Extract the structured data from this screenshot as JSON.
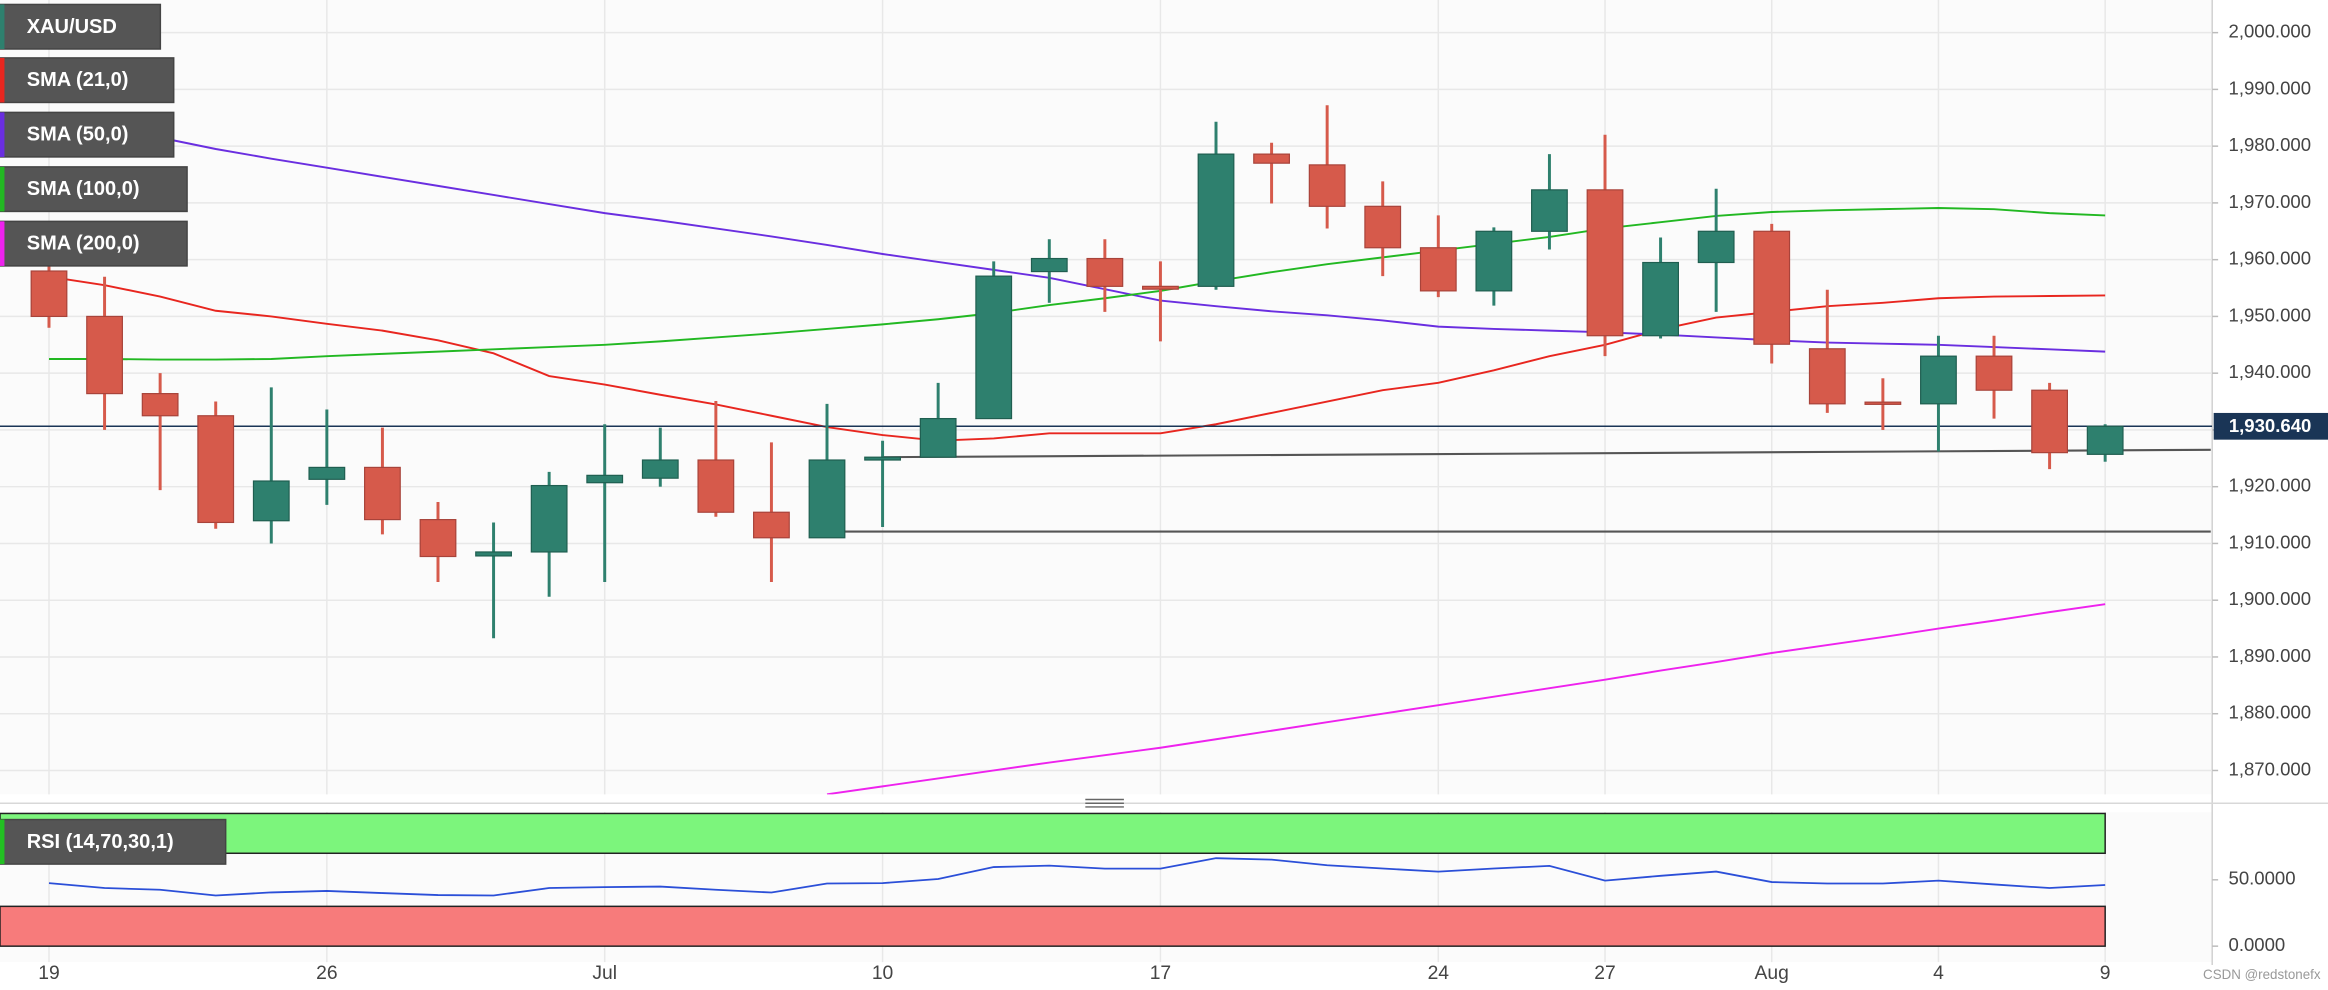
{
  "chart_data": {
    "type": "candlestick",
    "categories": [
      "19",
      null,
      null,
      null,
      null,
      "26",
      null,
      null,
      null,
      null,
      "Jul",
      null,
      null,
      null,
      null,
      "10",
      null,
      null,
      null,
      null,
      "17",
      null,
      null,
      null,
      null,
      "24",
      null,
      null,
      "27",
      null,
      null,
      "Aug",
      null,
      null,
      "4",
      null,
      null,
      "9"
    ],
    "ohlc": {
      "name": "XAU/USD",
      "up_color": "#2e806e",
      "down_color": "#d65a4b",
      "open": [
        1958,
        1950,
        1936.4,
        1932.5,
        1914,
        1921.3,
        1923.4,
        1914.2,
        1907.8,
        1908.5,
        1920.7,
        1921.5,
        1924.7,
        1915.5,
        1911,
        1924.7,
        1925.2,
        1932,
        1957.9,
        1960.2,
        1955.3,
        1955.3,
        1978.6,
        1976.7,
        1969.4,
        1962.1,
        1954.5,
        1965,
        1972.3,
        1946.6,
        1959.5,
        1965,
        1944.3,
        1934.9,
        1934.6,
        1943,
        1937,
        1925.7
      ],
      "high": [
        1959,
        1957,
        1940,
        1935,
        1937.5,
        1933.6,
        1930.4,
        1917.3,
        1913.7,
        1922.6,
        1931,
        1930.4,
        1935.1,
        1927.8,
        1934.6,
        1928.1,
        1938.3,
        1959.7,
        1963.6,
        1963.6,
        1959.7,
        1984.3,
        1980.6,
        1987.2,
        1973.8,
        1967.8,
        1965.7,
        1978.6,
        1982,
        1963.9,
        1972.5,
        1966.3,
        1954.7,
        1939.1,
        1946.6,
        1946.6,
        1938.3,
        1931
      ],
      "low": [
        1948,
        1930,
        1919.4,
        1912.6,
        1910,
        1916.8,
        1911.6,
        1903.2,
        1893.3,
        1900.6,
        1903.2,
        1920,
        1914.7,
        1903.2,
        1911,
        1912.9,
        1925.2,
        1932,
        1952.4,
        1950.8,
        1945.6,
        1954.7,
        1969.9,
        1965.5,
        1957.1,
        1953.4,
        1951.9,
        1961.8,
        1943,
        1946.1,
        1950.8,
        1941.7,
        1933,
        1930,
        1926.2,
        1932,
        1923.1,
        1924.4
      ],
      "close": [
        1950,
        1936.4,
        1932.5,
        1913.7,
        1921,
        1923.4,
        1914.2,
        1907.7,
        1908.5,
        1920.2,
        1922,
        1924.7,
        1915.5,
        1911,
        1924.7,
        1925.2,
        1932,
        1957.1,
        1960.2,
        1955.3,
        1954.8,
        1978.6,
        1977,
        1969.4,
        1962.1,
        1954.5,
        1965,
        1972.3,
        1946.6,
        1959.5,
        1965,
        1945.1,
        1934.6,
        1934.6,
        1943,
        1937,
        1926,
        1930.64
      ]
    },
    "series": [
      {
        "name": "SMA (21,0)",
        "color": "#e8261f",
        "values": [
          1957,
          1955.5,
          1953.5,
          1951,
          1950,
          1948.7,
          1947.5,
          1945.8,
          1943.5,
          1939.5,
          1938,
          1936.2,
          1934.5,
          1932.5,
          1930.5,
          1929.1,
          1928.1,
          1928.5,
          1929.4,
          1929.4,
          1929.4,
          1931,
          1933,
          1935,
          1937,
          1938.3,
          1940.5,
          1943,
          1945,
          1947.7,
          1949.8,
          1950.8,
          1951.8,
          1952.4,
          1953.2,
          1953.5,
          1953.6,
          1953.7
        ]
      },
      {
        "name": "SMA (50,0)",
        "color": "#6a2ee0",
        "values": [
          1984.5,
          1983,
          1981.5,
          1979.5,
          1977.8,
          1976.2,
          1974.6,
          1973,
          1971.4,
          1969.8,
          1968.2,
          1966.9,
          1965.5,
          1964.1,
          1962.6,
          1961,
          1959.6,
          1958.2,
          1956.8,
          1954.8,
          1952.8,
          1951.8,
          1950.9,
          1950.2,
          1949.3,
          1948.2,
          1947.8,
          1947.5,
          1947.2,
          1946.8,
          1946.3,
          1945.8,
          1945.4,
          1945.2,
          1945,
          1944.6,
          1944.2,
          1943.8
        ]
      },
      {
        "name": "SMA (100,0)",
        "color": "#22b822",
        "values": [
          1942.5,
          1942.5,
          1942.4,
          1942.4,
          1942.5,
          1943,
          1943.4,
          1943.8,
          1944.2,
          1944.6,
          1945,
          1945.6,
          1946.3,
          1947,
          1947.8,
          1948.6,
          1949.5,
          1950.6,
          1952,
          1953.2,
          1954.5,
          1956.2,
          1957.8,
          1959.2,
          1960.4,
          1961.6,
          1962.8,
          1964,
          1965.5,
          1966.6,
          1967.7,
          1968.4,
          1968.7,
          1968.9,
          1969.1,
          1968.9,
          1968.2,
          1967.8
        ]
      },
      {
        "name": "SMA (200,0)",
        "color": "#ee22ee",
        "values": [
          null,
          null,
          null,
          null,
          null,
          null,
          null,
          null,
          null,
          null,
          null,
          null,
          null,
          null,
          1865.8,
          1867.2,
          1868.6,
          1870,
          1871.4,
          1872.7,
          1874,
          1875.5,
          1877,
          1878.5,
          1880,
          1881.5,
          1883,
          1884.5,
          1886,
          1887.6,
          1889.1,
          1890.7,
          1892.1,
          1893.5,
          1895,
          1896.4,
          1897.9,
          1899.3
        ]
      }
    ],
    "ylim": [
      1865.8,
      2005.75
    ],
    "yticks": [
      {
        "value": 2000,
        "label": "2,000.000"
      },
      {
        "value": 1990,
        "label": "1,990.000"
      },
      {
        "value": 1980,
        "label": "1,980.000"
      },
      {
        "value": 1970,
        "label": "1,970.000"
      },
      {
        "value": 1960,
        "label": "1,960.000"
      },
      {
        "value": 1950,
        "label": "1,950.000"
      },
      {
        "value": 1940,
        "label": "1,940.000"
      },
      {
        "value": 1930,
        "label": "1,930.000"
      },
      {
        "value": 1920,
        "label": "1,920.000"
      },
      {
        "value": 1910,
        "label": "1,910.000"
      },
      {
        "value": 1900,
        "label": "1,900.000"
      },
      {
        "value": 1890,
        "label": "1,890.000"
      },
      {
        "value": 1880,
        "label": "1,880.000"
      },
      {
        "value": 1870,
        "label": "1,870.000"
      }
    ],
    "last_price": {
      "value": 1930.64,
      "label": "1,930.640",
      "color": "#1a3556"
    },
    "trendlines": [
      {
        "x": [
          15,
          38.9
        ],
        "y": [
          1925.2,
          1926.5
        ],
        "color": "#555555"
      },
      {
        "x": [
          14,
          38.9
        ],
        "y": [
          1912.1,
          1912.1
        ],
        "color": "#555555"
      }
    ],
    "grid": true,
    "rsi": {
      "name": "RSI (14,70,30,1)",
      "color": "#2b4fd8",
      "values": [
        47.5,
        43.8,
        42.5,
        38.2,
        40.5,
        41.6,
        40,
        38.5,
        38.2,
        43.8,
        44.5,
        44.9,
        42.5,
        40.4,
        47.2,
        47.5,
        50.6,
        59.6,
        60.7,
        58.4,
        58.4,
        66.3,
        65.2,
        61,
        58.5,
        56.2,
        58.5,
        60.5,
        49.4,
        53,
        56.2,
        48.3,
        47.2,
        47.2,
        49.4,
        46.5,
        43.8,
        46.1
      ],
      "ylim": [
        -12,
        101
      ],
      "yticks": [
        {
          "value": 50,
          "label": "50.0000"
        },
        {
          "value": 0,
          "label": "0.0000"
        }
      ],
      "bands": [
        {
          "range": [
            70,
            100
          ],
          "color": "#7cf57c"
        },
        {
          "range": [
            0,
            30
          ],
          "color": "#f77b7b"
        }
      ]
    },
    "watermark": "CSDN @redstonefx"
  }
}
